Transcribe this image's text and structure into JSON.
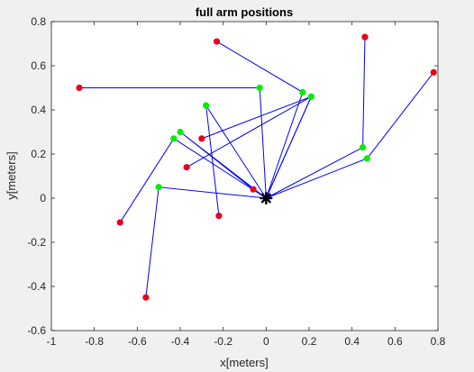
{
  "chart_data": {
    "type": "line",
    "title": "full arm positions",
    "xlabel": "x[meters]",
    "ylabel": "y[meters]",
    "xlim": [
      -1,
      0.8
    ],
    "ylim": [
      -0.6,
      0.8
    ],
    "xticks": [
      "-1",
      "-0.8",
      "-0.6",
      "-0.4",
      "-0.2",
      "0",
      "0.2",
      "0.4",
      "0.6",
      "0.8"
    ],
    "yticks": [
      "-0.6",
      "-0.4",
      "-0.2",
      "0",
      "0.2",
      "0.4",
      "0.6",
      "0.8"
    ],
    "grid": false,
    "colors": {
      "line": "#0000ff",
      "elbow": "#00ee00",
      "end_effector": "#e8001c",
      "base": "#000000",
      "plot_background": "#ffffff",
      "figure_background": "#f0f0f0"
    },
    "base": {
      "x": 0,
      "y": 0
    },
    "arms": [
      {
        "elbow": [
          0.17,
          0.48
        ],
        "end": [
          -0.23,
          0.71
        ]
      },
      {
        "elbow": [
          0.21,
          0.46
        ],
        "end": [
          -0.3,
          0.27
        ]
      },
      {
        "elbow": [
          -0.03,
          0.5
        ],
        "end": [
          -0.87,
          0.5
        ]
      },
      {
        "elbow": [
          0.45,
          0.23
        ],
        "end": [
          0.46,
          0.73
        ]
      },
      {
        "elbow": [
          0.47,
          0.18
        ],
        "end": [
          0.78,
          0.57
        ]
      },
      {
        "elbow": [
          -0.4,
          0.3
        ],
        "end": [
          -0.06,
          0.04
        ]
      },
      {
        "elbow": [
          -0.43,
          0.27
        ],
        "end": [
          -0.68,
          -0.11
        ]
      },
      {
        "elbow": [
          -0.5,
          0.05
        ],
        "end": [
          -0.56,
          -0.45
        ]
      },
      {
        "elbow": [
          -0.28,
          0.42
        ],
        "end": [
          -0.22,
          -0.08
        ]
      },
      {
        "elbow": [
          0.21,
          0.46
        ],
        "end": [
          -0.37,
          0.14
        ]
      }
    ]
  }
}
